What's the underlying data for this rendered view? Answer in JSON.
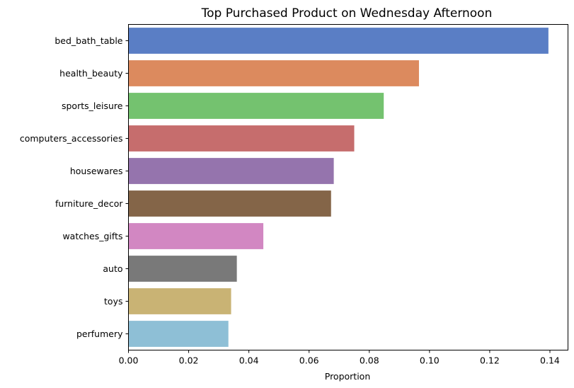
{
  "chart_data": {
    "type": "bar",
    "orientation": "horizontal",
    "title": "Top Purchased Product on Wednesday Afternoon",
    "xlabel": "Proportion",
    "ylabel": "",
    "xlim": [
      0,
      0.146
    ],
    "x_ticks": [
      "0.00",
      "0.02",
      "0.04",
      "0.06",
      "0.08",
      "0.10",
      "0.12",
      "0.14"
    ],
    "grid": false,
    "categories": [
      "bed_bath_table",
      "health_beauty",
      "sports_leisure",
      "computers_accessories",
      "housewares",
      "furniture_decor",
      "watches_gifts",
      "auto",
      "toys",
      "perfumery"
    ],
    "values": [
      0.1395,
      0.0965,
      0.0848,
      0.075,
      0.0682,
      0.0673,
      0.0448,
      0.036,
      0.0341,
      0.0332
    ],
    "colors": [
      "#5a7ec5",
      "#dc8a5e",
      "#74c26f",
      "#c66d6d",
      "#9574ad",
      "#846548",
      "#d287c2",
      "#797979",
      "#c9b374",
      "#8ebfd6"
    ]
  }
}
